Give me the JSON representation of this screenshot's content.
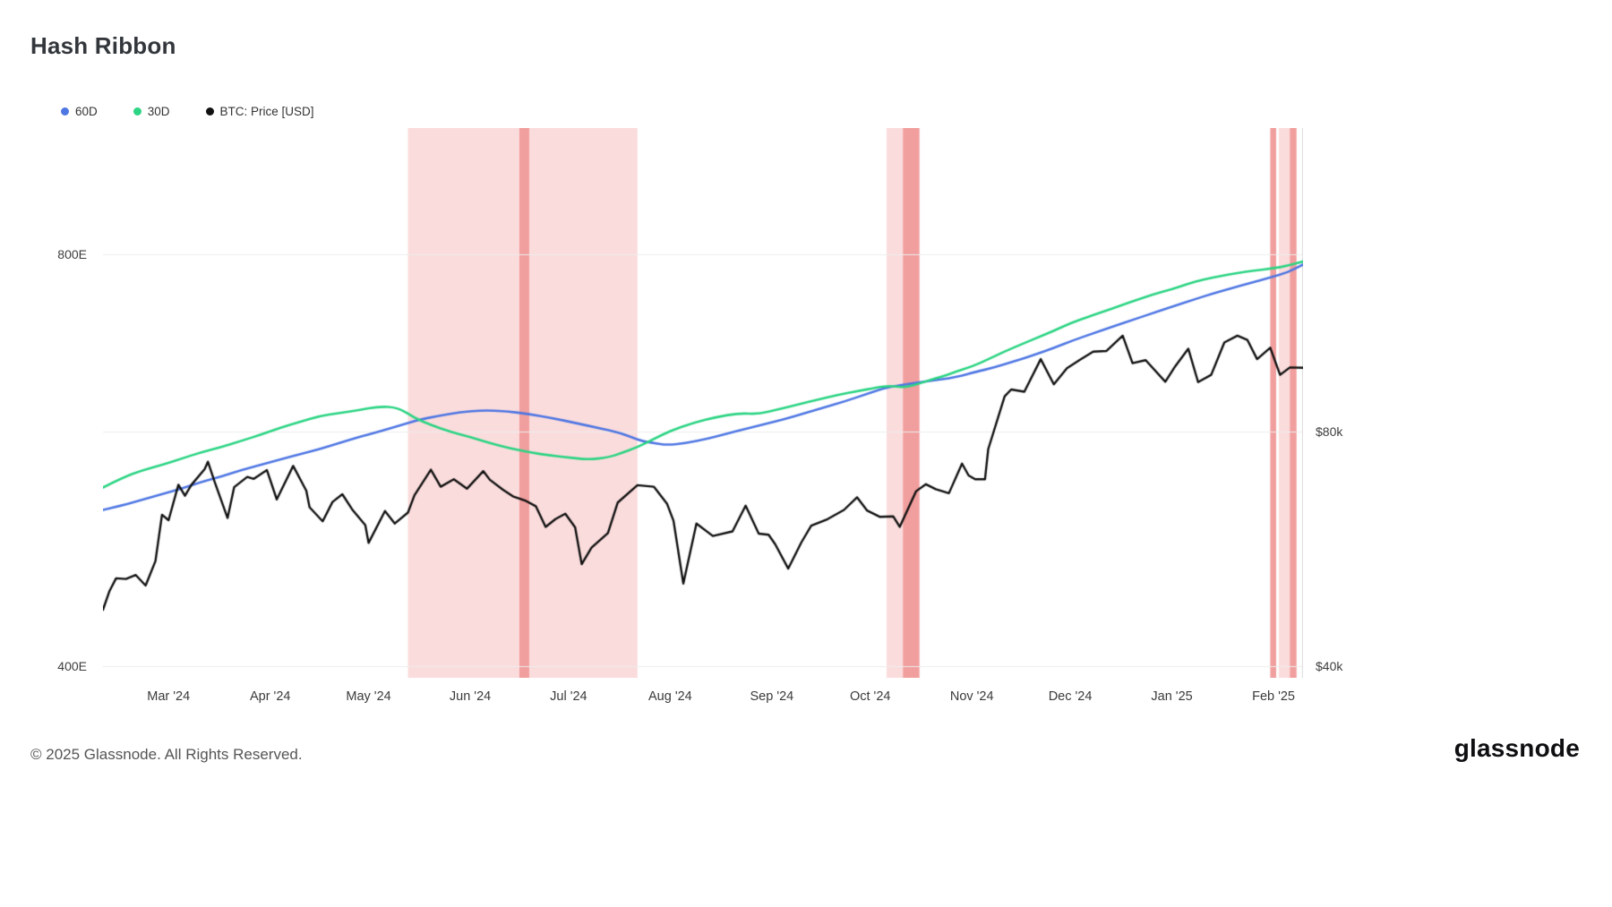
{
  "page": {
    "title": "Hash Ribbon"
  },
  "footer": {
    "copyright": "© 2025 Glassnode. All Rights Reserved.",
    "brand": "glassnode"
  },
  "legend": {
    "items": [
      {
        "label": "60D",
        "color": "#4f77e3"
      },
      {
        "label": "30D",
        "color": "#2cd483"
      },
      {
        "label": "BTC: Price [USD]",
        "color": "#111111"
      }
    ]
  },
  "chart_data": {
    "type": "line",
    "title": "Hash Ribbon",
    "x_domain_days": [
      0,
      366
    ],
    "x_ticks": [
      {
        "label": "Mar '24",
        "day": 20
      },
      {
        "label": "Apr '24",
        "day": 51
      },
      {
        "label": "May '24",
        "day": 81
      },
      {
        "label": "Jun '24",
        "day": 112
      },
      {
        "label": "Jul '24",
        "day": 142
      },
      {
        "label": "Aug '24",
        "day": 173
      },
      {
        "label": "Sep '24",
        "day": 204
      },
      {
        "label": "Oct '24",
        "day": 234
      },
      {
        "label": "Nov '24",
        "day": 265
      },
      {
        "label": "Dec '24",
        "day": 295
      },
      {
        "label": "Jan '25",
        "day": 326
      },
      {
        "label": "Feb '25",
        "day": 357
      }
    ],
    "left_axis": {
      "unit": "EH/s",
      "scale": "log2",
      "ylim": [
        392,
        989
      ],
      "ticks": [
        {
          "label": "800E",
          "value": 800
        },
        {
          "label": "400E",
          "value": 400
        }
      ]
    },
    "right_axis": {
      "unit": "USD (thousands)",
      "scale": "log2",
      "ylim": [
        38.6,
        196
      ],
      "ticks": [
        {
          "label": "$80k",
          "value": 80
        },
        {
          "label": "$40k",
          "value": 40
        }
      ]
    },
    "grid_color": "#ededed",
    "axis_line_color": "#dcdcdc",
    "region_colors": {
      "light": "#fbdcdc",
      "dark": "#f19e9e"
    },
    "regions": [
      {
        "start": 93,
        "end": 163,
        "shade": "light"
      },
      {
        "start": 127,
        "end": 130,
        "shade": "dark"
      },
      {
        "start": 239,
        "end": 249,
        "shade": "light"
      },
      {
        "start": 244,
        "end": 249,
        "shade": "dark"
      },
      {
        "start": 356,
        "end": 357.8,
        "shade": "dark"
      },
      {
        "start": 358.6,
        "end": 364,
        "shade": "light"
      },
      {
        "start": 362,
        "end": 364,
        "shade": "dark"
      }
    ],
    "series": [
      {
        "name": "60D",
        "axis": "left",
        "color": "#4f77e3",
        "smooth": true,
        "line_width": 2.6,
        "days": [
          0,
          6,
          12,
          18,
          24,
          30,
          36,
          42,
          48,
          54,
          60,
          66,
          72,
          78,
          84,
          90,
          96,
          102,
          109,
          116,
          123,
          130,
          137,
          144,
          151,
          158,
          164,
          168,
          172,
          178,
          184,
          190,
          196,
          202,
          208,
          214,
          220,
          226,
          232,
          238,
          242,
          246,
          250,
          254,
          258,
          262,
          266,
          272,
          278,
          284,
          290,
          296,
          302,
          308,
          314,
          320,
          326,
          332,
          338,
          344,
          350,
          356,
          361,
          366
        ],
        "values": [
          520,
          524,
          529,
          534,
          539,
          545,
          550,
          556,
          561,
          566,
          571,
          576,
          582,
          588,
          593,
          599,
          605,
          609,
          613,
          615,
          614,
          611,
          607,
          602,
          597,
          592,
          584,
          582,
          580,
          582,
          586,
          591,
          596,
          601,
          606,
          612,
          618,
          624,
          631,
          638,
          641,
          643,
          645,
          647,
          649,
          652,
          656,
          661,
          668,
          675,
          683,
          692,
          700,
          708,
          716,
          724,
          732,
          740,
          748,
          755,
          762,
          769,
          775,
          786
        ]
      },
      {
        "name": "30D",
        "axis": "left",
        "color": "#2cd483",
        "smooth": true,
        "line_width": 2.6,
        "days": [
          0,
          6,
          12,
          18,
          24,
          30,
          36,
          42,
          48,
          54,
          60,
          66,
          72,
          78,
          84,
          90,
          95,
          100,
          106,
          112,
          118,
          124,
          130,
          136,
          142,
          148,
          154,
          158,
          163,
          168,
          173,
          180,
          187,
          194,
          200,
          206,
          212,
          218,
          224,
          230,
          236,
          240,
          244,
          248,
          252,
          256,
          260,
          265,
          270,
          275,
          280,
          285,
          290,
          295,
          300,
          305,
          310,
          315,
          320,
          326,
          331,
          336,
          341,
          346,
          351,
          357,
          361,
          366
        ],
        "values": [
          540,
          549,
          556,
          561,
          567,
          573,
          578,
          584,
          590,
          597,
          603,
          609,
          612,
          615,
          619,
          618,
          607,
          600,
          593,
          588,
          582,
          577,
          573,
          570,
          568,
          566,
          568,
          572,
          578,
          586,
          594,
          602,
          608,
          612,
          611,
          616,
          621,
          626,
          631,
          635,
          639,
          641,
          639,
          642,
          647,
          651,
          656,
          662,
          670,
          679,
          687,
          695,
          703,
          712,
          719,
          726,
          733,
          740,
          747,
          754,
          761,
          767,
          771,
          775,
          778,
          781,
          784,
          790
        ]
      },
      {
        "name": "BTC: Price [USD]",
        "axis": "right",
        "color": "#111111",
        "smooth": false,
        "line_width": 2.4,
        "days": [
          0,
          2,
          4,
          7,
          10,
          13,
          16,
          18,
          20,
          23,
          25,
          27,
          31,
          32,
          34,
          38,
          40,
          44,
          46,
          50,
          53,
          58,
          62,
          63,
          67,
          70,
          73,
          76,
          80,
          81,
          86,
          89,
          93,
          95,
          100,
          103,
          107,
          111,
          116,
          118,
          122,
          125,
          129,
          132,
          135,
          138,
          141,
          144,
          146,
          149,
          154,
          157,
          163,
          168,
          172,
          174,
          177,
          181,
          186,
          192,
          196,
          200,
          203,
          205,
          209,
          213,
          216,
          221,
          226,
          230,
          233,
          237,
          241,
          243,
          248,
          251,
          254,
          258,
          262,
          264,
          266,
          269,
          270,
          275,
          277,
          281,
          286,
          290,
          294,
          298,
          302,
          306,
          311,
          314,
          318,
          324,
          327,
          331,
          334,
          338,
          342,
          346,
          349,
          352,
          356,
          359,
          362,
          366
        ],
        "values": [
          47.2,
          49.9,
          51.8,
          51.7,
          52.3,
          50.7,
          54.5,
          62.5,
          61.5,
          68.3,
          66.1,
          68.3,
          71.5,
          73.1,
          69.0,
          61.9,
          67.8,
          69.9,
          69.5,
          71.3,
          65.4,
          72.2,
          67.1,
          63.9,
          61.3,
          64.9,
          66.4,
          63.5,
          60.6,
          57.5,
          63.2,
          60.9,
          62.9,
          66.2,
          71.4,
          67.9,
          69.4,
          67.5,
          71.1,
          69.3,
          67.3,
          66.0,
          65.1,
          64.1,
          60.3,
          61.7,
          62.7,
          60.2,
          54.0,
          56.7,
          59.2,
          64.8,
          68.2,
          67.9,
          64.6,
          61.4,
          51.0,
          60.9,
          58.7,
          59.5,
          64.2,
          59.1,
          58.9,
          57.3,
          53.3,
          57.6,
          60.5,
          61.7,
          63.4,
          65.8,
          63.3,
          62.1,
          62.2,
          60.3,
          67.0,
          68.4,
          67.4,
          66.6,
          72.7,
          70.2,
          69.4,
          69.4,
          75.9,
          88.7,
          90.5,
          89.9,
          99.0,
          91.9,
          96.4,
          98.8,
          101.2,
          101.4,
          106.1,
          97.8,
          98.7,
          92.6,
          96.9,
          102.1,
          92.5,
          94.5,
          104.0,
          106.1,
          104.8,
          99.0,
          102.4,
          94.5,
          96.6,
          96.5
        ]
      }
    ]
  }
}
